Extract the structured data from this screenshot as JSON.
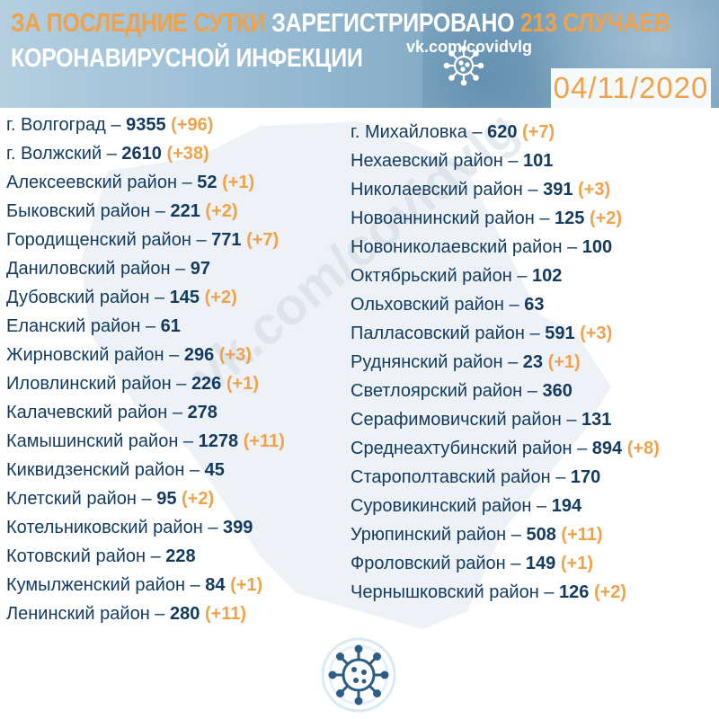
{
  "header": {
    "title_highlight": "ЗА ПОСЛЕДНИЕ СУТКИ",
    "title_middle": "ЗАРЕГИСТРИРОВАНО",
    "title_count": "213 СЛУЧАЕВ",
    "title_line2": "КОРОНАВИРУСНОЙ ИНФЕКЦИИ",
    "vk_link": "vk.com/covidvlg",
    "date": "04/11/2020"
  },
  "watermark": "vk.com/covidvlg",
  "colors": {
    "accent": "#f0a24a",
    "text": "#123a5e",
    "header": "#8fb5cf"
  },
  "icons": {
    "header": "virus-icon",
    "bottom": "virus-icon"
  },
  "left_column": [
    {
      "name": "г. Волгоград",
      "sep": " – ",
      "total": "9355",
      "increase": "(+96)"
    },
    {
      "name": "г. Волжский",
      "sep": " – ",
      "total": "2610",
      "increase": "(+38)"
    },
    {
      "name": "Алексеевский район",
      "sep": " – ",
      "total": "52",
      "increase": "(+1)"
    },
    {
      "name": "Быковский район",
      "sep": " – ",
      "total": "221",
      "increase": "(+2)"
    },
    {
      "name": "Городищенский район",
      "sep": " – ",
      "total": "771",
      "increase": "(+7)"
    },
    {
      "name": "Даниловский район",
      "sep": " – ",
      "total": "97",
      "increase": ""
    },
    {
      "name": "Дубовский район",
      "sep": " – ",
      "total": "145",
      "increase": "(+2)"
    },
    {
      "name": "Еланский район",
      "sep": " – ",
      "total": "61",
      "increase": ""
    },
    {
      "name": "Жирновский район",
      "sep": " – ",
      "total": "296",
      "increase": "(+3)"
    },
    {
      "name": "Иловлинский район",
      "sep": " – ",
      "total": "226",
      "increase": "(+1)"
    },
    {
      "name": "Калачевский район",
      "sep": " – ",
      "total": "278",
      "increase": ""
    },
    {
      "name": "Камышинский район",
      "sep": " – ",
      "total": "1278",
      "increase": "(+11)"
    },
    {
      "name": "Киквидзенский район",
      "sep": " – ",
      "total": "45",
      "increase": ""
    },
    {
      "name": "Клетский район",
      "sep": " – ",
      "total": "95",
      "increase": "(+2)"
    },
    {
      "name": "Котельниковский район",
      "sep": " – ",
      "total": "399",
      "increase": ""
    },
    {
      "name": "Котовский район",
      "sep": " – ",
      "total": "228",
      "increase": ""
    },
    {
      "name": "Кумылженский район",
      "sep": " – ",
      "total": "84",
      "increase": "(+1)"
    },
    {
      "name": "Ленинский район",
      "sep": " – ",
      "total": "280",
      "increase": "(+11)"
    }
  ],
  "right_column": [
    {
      "name": "г. Михайловка",
      "sep": " – ",
      "total": "620",
      "increase": "(+7)"
    },
    {
      "name": "Нехаевский район",
      "sep": " – ",
      "total": "101",
      "increase": ""
    },
    {
      "name": "Николаевский район",
      "sep": " – ",
      "total": "391",
      "increase": "(+3)"
    },
    {
      "name": "Новоаннинский район",
      "sep": " – ",
      "total": "125",
      "increase": "(+2)"
    },
    {
      "name": "Новониколаевский район",
      "sep": " – ",
      "total": "100",
      "increase": ""
    },
    {
      "name": "Октябрьский район",
      "sep": " – ",
      "total": "102",
      "increase": ""
    },
    {
      "name": "Ольховский район",
      "sep": " – ",
      "total": "63",
      "increase": ""
    },
    {
      "name": "Палласовский район",
      "sep": " – ",
      "total": "591",
      "increase": "(+3)"
    },
    {
      "name": "Руднянский район",
      "sep": " – ",
      "total": "23",
      "increase": "(+1)"
    },
    {
      "name": "Светлоярский район",
      "sep": " – ",
      "total": "360",
      "increase": ""
    },
    {
      "name": "Серафимовичский район",
      "sep": " – ",
      "total": "131",
      "increase": ""
    },
    {
      "name": "Среднеахтубинский район",
      "sep": " – ",
      "total": "894",
      "increase": "(+8)"
    },
    {
      "name": "Старополтавский район",
      "sep": " – ",
      "total": "170",
      "increase": ""
    },
    {
      "name": "Суровикинский район",
      "sep": " – ",
      "total": "194",
      "increase": ""
    },
    {
      "name": "Урюпинский район",
      "sep": " – ",
      "total": "508",
      "increase": "(+11)"
    },
    {
      "name": "Фроловский район",
      "sep": "  – ",
      "total": "149",
      "increase": "(+1)"
    },
    {
      "name": "Чернышковский район",
      "sep": " – ",
      "total": "126",
      "increase": "(+2)"
    }
  ]
}
